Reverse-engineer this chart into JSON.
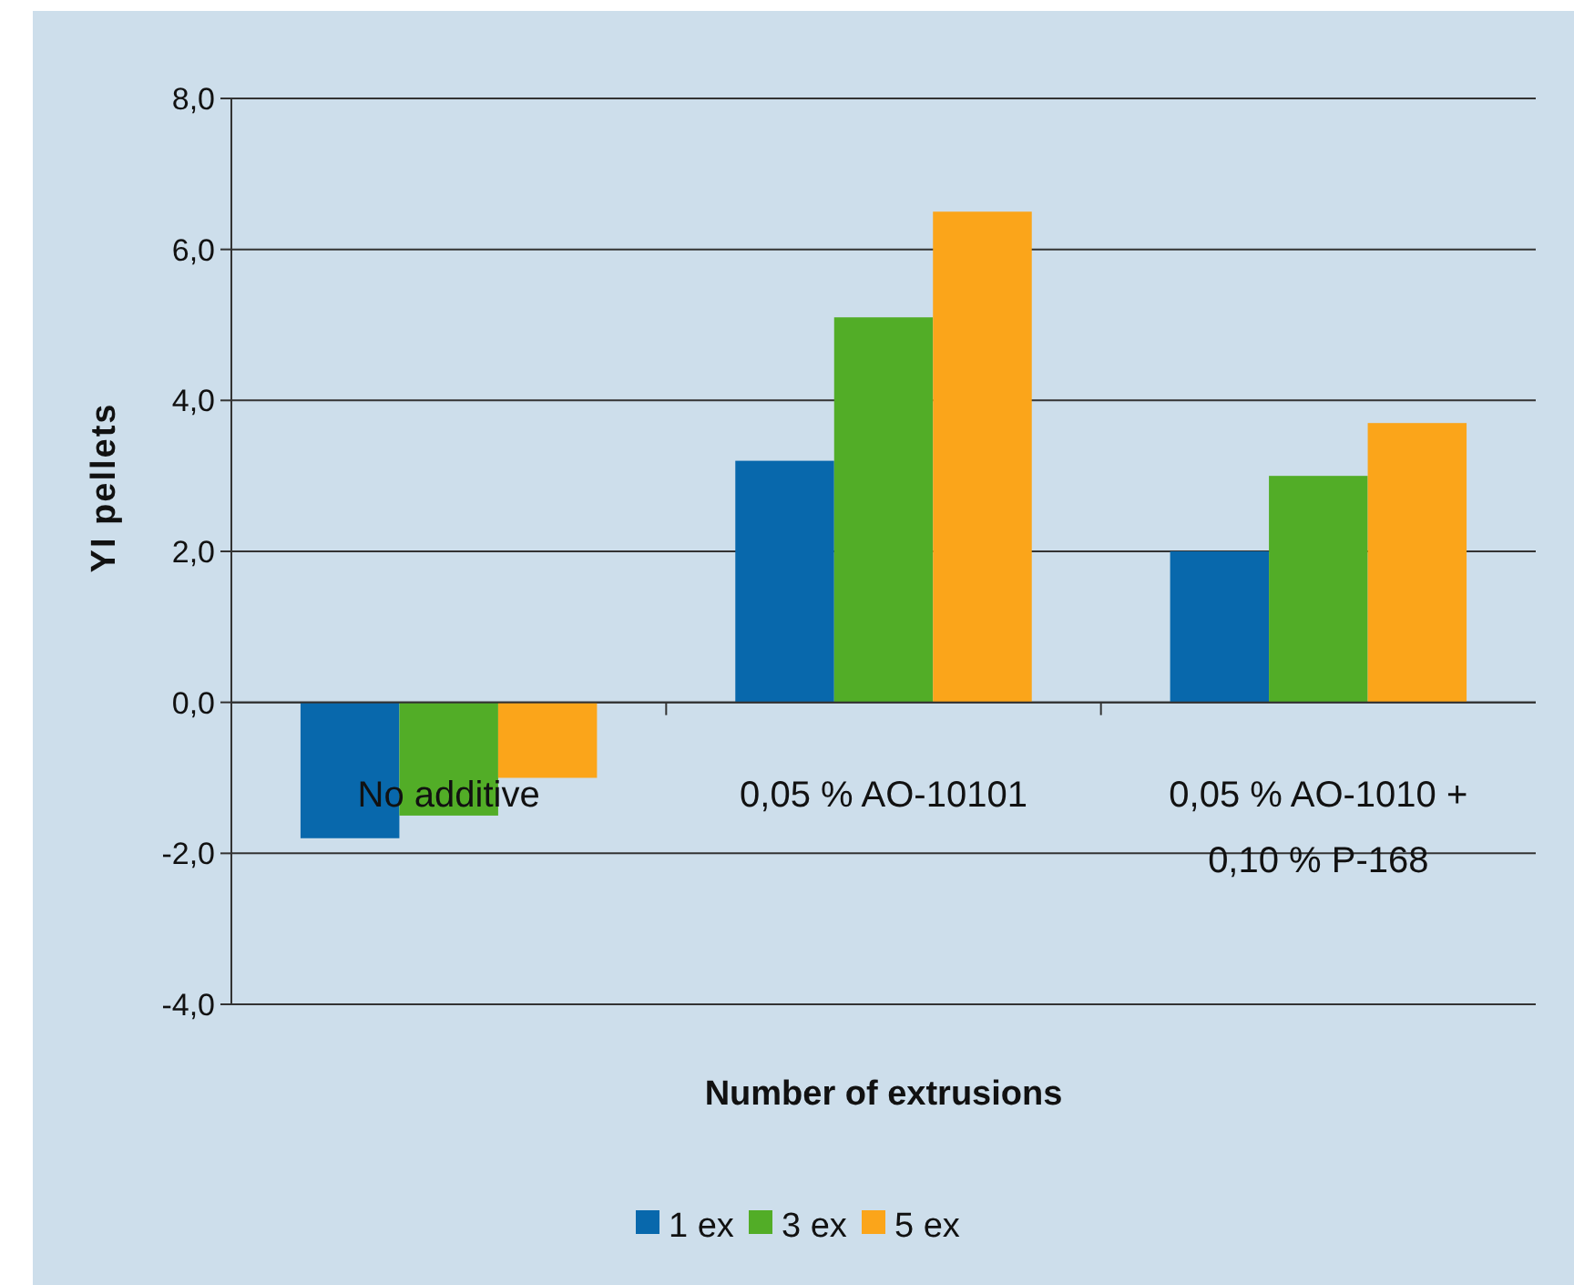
{
  "chart_data": {
    "type": "bar",
    "xlabel": "Number of extrusions",
    "ylabel": "YI pellets",
    "categories": [
      "No additive",
      "0,05 % AO-10101",
      "0,05 % AO-1010 + 0,10 % P-168"
    ],
    "series": [
      {
        "name": "1 ex",
        "color": "#0868ac",
        "values": [
          -1.8,
          3.2,
          2.0
        ]
      },
      {
        "name": "3 ex",
        "color": "#52ad27",
        "values": [
          -1.5,
          5.1,
          3.0
        ]
      },
      {
        "name": "5 ex",
        "color": "#fba51a",
        "values": [
          -1.0,
          6.5,
          3.7
        ]
      }
    ],
    "ylim": [
      -4,
      8
    ],
    "yticks": [
      {
        "value": -4,
        "label": "-4,0"
      },
      {
        "value": -2,
        "label": "-2,0"
      },
      {
        "value": 0,
        "label": "0,0"
      },
      {
        "value": 2,
        "label": "2,0"
      },
      {
        "value": 4,
        "label": "4,0"
      },
      {
        "value": 6,
        "label": "6,0"
      },
      {
        "value": 8,
        "label": "8,0"
      }
    ],
    "grid": "y",
    "legend": "bottom"
  }
}
